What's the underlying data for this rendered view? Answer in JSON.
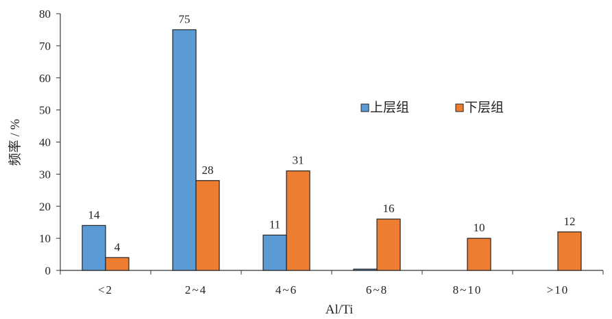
{
  "chart_data": {
    "type": "bar",
    "categories": [
      "<2",
      "2~4",
      "4~6",
      "6~8",
      "8~10",
      ">10"
    ],
    "series": [
      {
        "name": "上层组",
        "values": [
          14,
          75,
          11,
          0.4,
          0,
          0
        ],
        "labels": [
          "14",
          "75",
          "11",
          "",
          "",
          ""
        ],
        "color": "#5b9bd5"
      },
      {
        "name": "下层组",
        "values": [
          4,
          28,
          31,
          16,
          10,
          12
        ],
        "labels": [
          "4",
          "28",
          "31",
          "16",
          "10",
          "12"
        ],
        "color": "#ed7d31"
      }
    ],
    "xlabel": "Al/Ti",
    "ylabel": "频率 / %",
    "ylim": [
      0,
      80
    ],
    "yticks": [
      "0",
      "10",
      "20",
      "30",
      "40",
      "50",
      "60",
      "70",
      "80"
    ],
    "legend_position": "upper-right",
    "grid": false
  }
}
